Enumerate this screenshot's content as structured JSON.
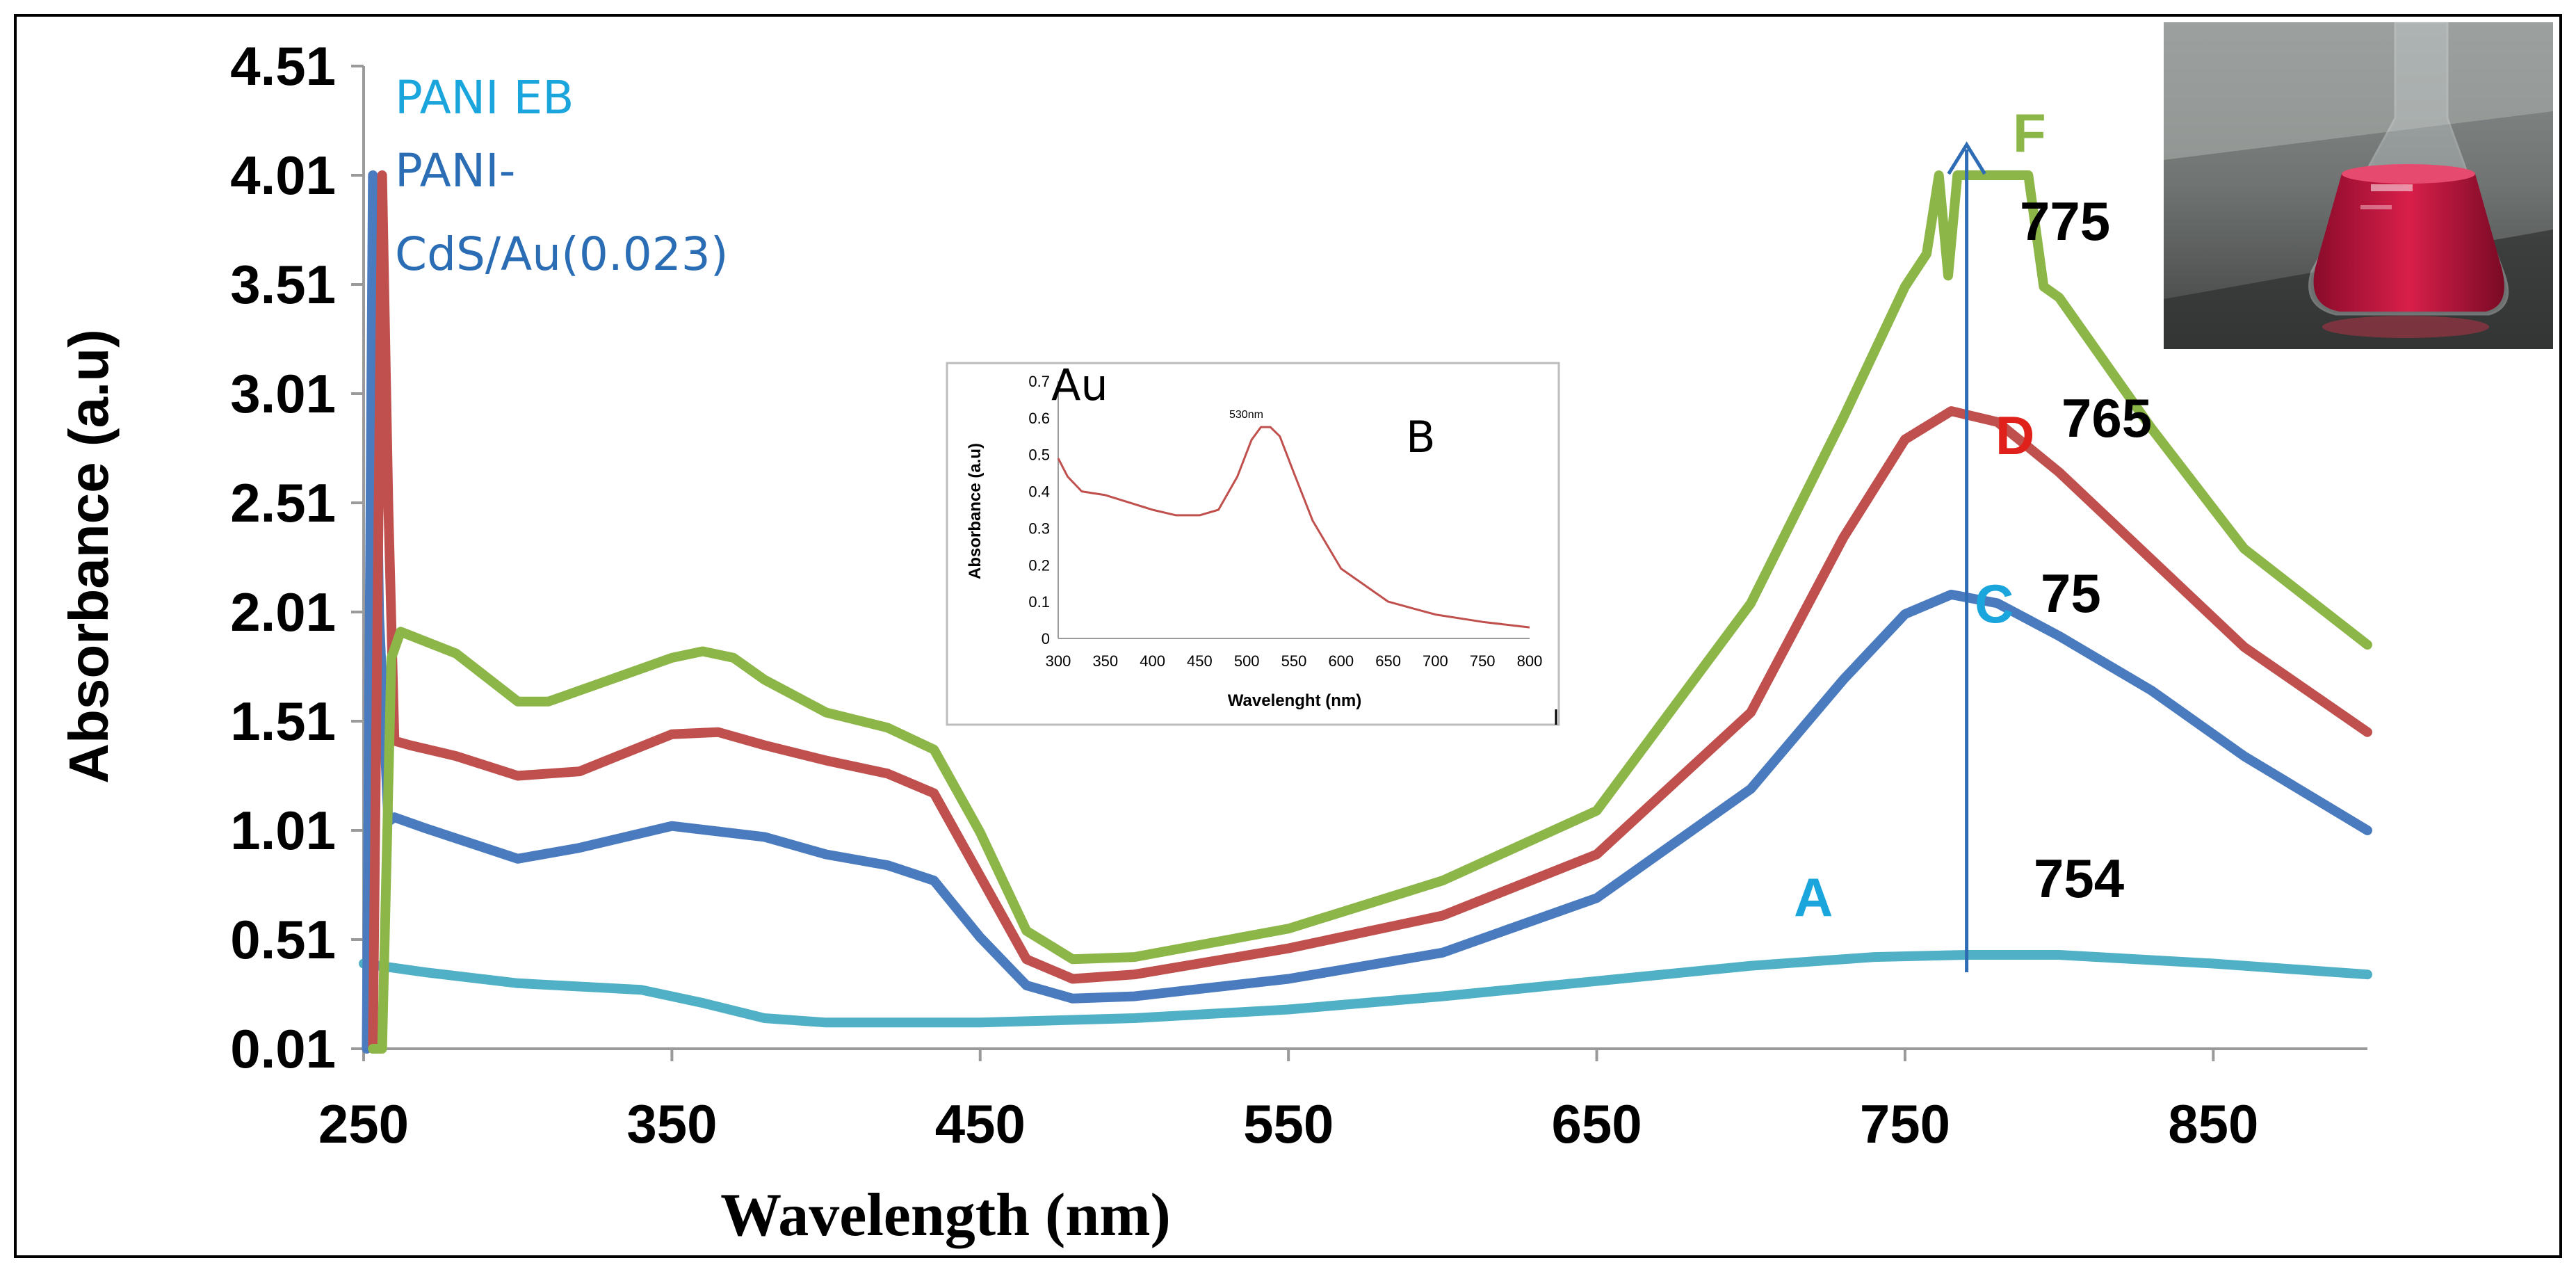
{
  "chart_data": {
    "type": "line",
    "xlabel": "Wavelength (nm)",
    "ylabel": "Absorbance (a.u)",
    "xlim": [
      250,
      900
    ],
    "ylim": [
      0.01,
      4.51
    ],
    "xticks": [
      "250",
      "350",
      "450",
      "550",
      "650",
      "750",
      "850"
    ],
    "yticks": [
      "0.01",
      "0.51",
      "1.01",
      "1.51",
      "2.01",
      "2.51",
      "3.01",
      "3.51",
      "4.01",
      "4.51"
    ],
    "legend": [
      {
        "text": "PANI EB",
        "color": "#1aa6dc"
      },
      {
        "text": "PANI-",
        "color": "#2a6db5"
      },
      {
        "text": "CdS/Au(0.023)",
        "color": "#2a6db5"
      }
    ],
    "series": [
      {
        "color": "#4fb0c6",
        "x": [
          250,
          270,
          300,
          340,
          360,
          380,
          400,
          450,
          500,
          550,
          600,
          650,
          700,
          740,
          770,
          800,
          850,
          900
        ],
        "y": [
          0.4,
          0.36,
          0.31,
          0.28,
          0.22,
          0.15,
          0.13,
          0.13,
          0.15,
          0.19,
          0.25,
          0.32,
          0.39,
          0.43,
          0.44,
          0.44,
          0.4,
          0.35
        ]
      },
      {
        "color": "#4a7bbf",
        "x": [
          251,
          253,
          255,
          258,
          260,
          270,
          285,
          300,
          320,
          350,
          380,
          400,
          420,
          435,
          450,
          465,
          480,
          500,
          550,
          600,
          650,
          700,
          730,
          750,
          765,
          780,
          800,
          830,
          860,
          900
        ],
        "y": [
          0.01,
          4.01,
          2.0,
          1.05,
          1.07,
          1.02,
          0.95,
          0.88,
          0.93,
          1.03,
          0.98,
          0.9,
          0.85,
          0.78,
          0.52,
          0.3,
          0.24,
          0.25,
          0.33,
          0.45,
          0.7,
          1.2,
          1.7,
          2.0,
          2.09,
          2.05,
          1.9,
          1.65,
          1.35,
          1.01
        ]
      },
      {
        "color": "#c0504d",
        "x": [
          253,
          256,
          258,
          260,
          265,
          280,
          300,
          320,
          350,
          365,
          380,
          400,
          420,
          435,
          450,
          465,
          480,
          500,
          550,
          600,
          650,
          700,
          730,
          750,
          765,
          780,
          800,
          830,
          860,
          900
        ],
        "y": [
          0.01,
          4.01,
          2.5,
          1.42,
          1.4,
          1.35,
          1.26,
          1.28,
          1.45,
          1.46,
          1.4,
          1.33,
          1.27,
          1.18,
          0.8,
          0.42,
          0.33,
          0.35,
          0.47,
          0.62,
          0.9,
          1.55,
          2.35,
          2.8,
          2.93,
          2.88,
          2.65,
          2.25,
          1.85,
          1.46
        ]
      },
      {
        "color": "#8db648",
        "x": [
          253,
          256,
          259,
          262,
          280,
          300,
          310,
          330,
          350,
          360,
          370,
          380,
          400,
          420,
          435,
          450,
          465,
          480,
          500,
          550,
          600,
          650,
          700,
          730,
          750,
          757,
          761,
          764,
          767,
          790,
          795,
          800,
          830,
          860,
          900
        ],
        "y": [
          0.01,
          0.01,
          1.8,
          1.92,
          1.82,
          1.6,
          1.6,
          1.7,
          1.8,
          1.83,
          1.8,
          1.7,
          1.55,
          1.48,
          1.38,
          1.0,
          0.55,
          0.42,
          0.43,
          0.56,
          0.78,
          1.1,
          2.05,
          2.9,
          3.5,
          3.65,
          4.01,
          3.55,
          4.01,
          4.01,
          3.5,
          3.45,
          2.85,
          2.3,
          1.86
        ]
      }
    ],
    "curve_labels": [
      {
        "text": "F",
        "color": "#8db648"
      },
      {
        "text": "775",
        "color": "#000000"
      },
      {
        "text": "D",
        "color": "#e0201b"
      },
      {
        "text": "765",
        "color": "#000000"
      },
      {
        "text": "C",
        "color": "#1aa6dc"
      },
      {
        "text": "75",
        "color": "#000000"
      },
      {
        "text": "A",
        "color": "#1aa6dc"
      },
      {
        "text": "754",
        "color": "#000000"
      }
    ],
    "arrow_x": 770,
    "inset": {
      "type": "line",
      "label": "Au",
      "letter": "B",
      "peak_label": "530nm",
      "xlabel": "Wavelenght (nm)",
      "ylabel": "Absorbance (a.u)",
      "xlim": [
        300,
        800
      ],
      "ylim": [
        0,
        0.7
      ],
      "xticks": [
        "300",
        "350",
        "400",
        "450",
        "500",
        "550",
        "600",
        "650",
        "700",
        "750",
        "800"
      ],
      "yticks": [
        "0",
        "0.1",
        "0.2",
        "0.3",
        "0.4",
        "0.5",
        "0.6",
        "0.7"
      ],
      "color": "#c0504d",
      "x": [
        300,
        310,
        325,
        350,
        375,
        400,
        425,
        450,
        470,
        490,
        505,
        515,
        525,
        535,
        550,
        570,
        600,
        650,
        700,
        750,
        800
      ],
      "y": [
        0.49,
        0.44,
        0.4,
        0.39,
        0.37,
        0.35,
        0.335,
        0.335,
        0.35,
        0.44,
        0.54,
        0.575,
        0.575,
        0.55,
        0.45,
        0.32,
        0.19,
        0.1,
        0.065,
        0.045,
        0.03
      ]
    },
    "photo": {
      "description": "flask"
    }
  }
}
